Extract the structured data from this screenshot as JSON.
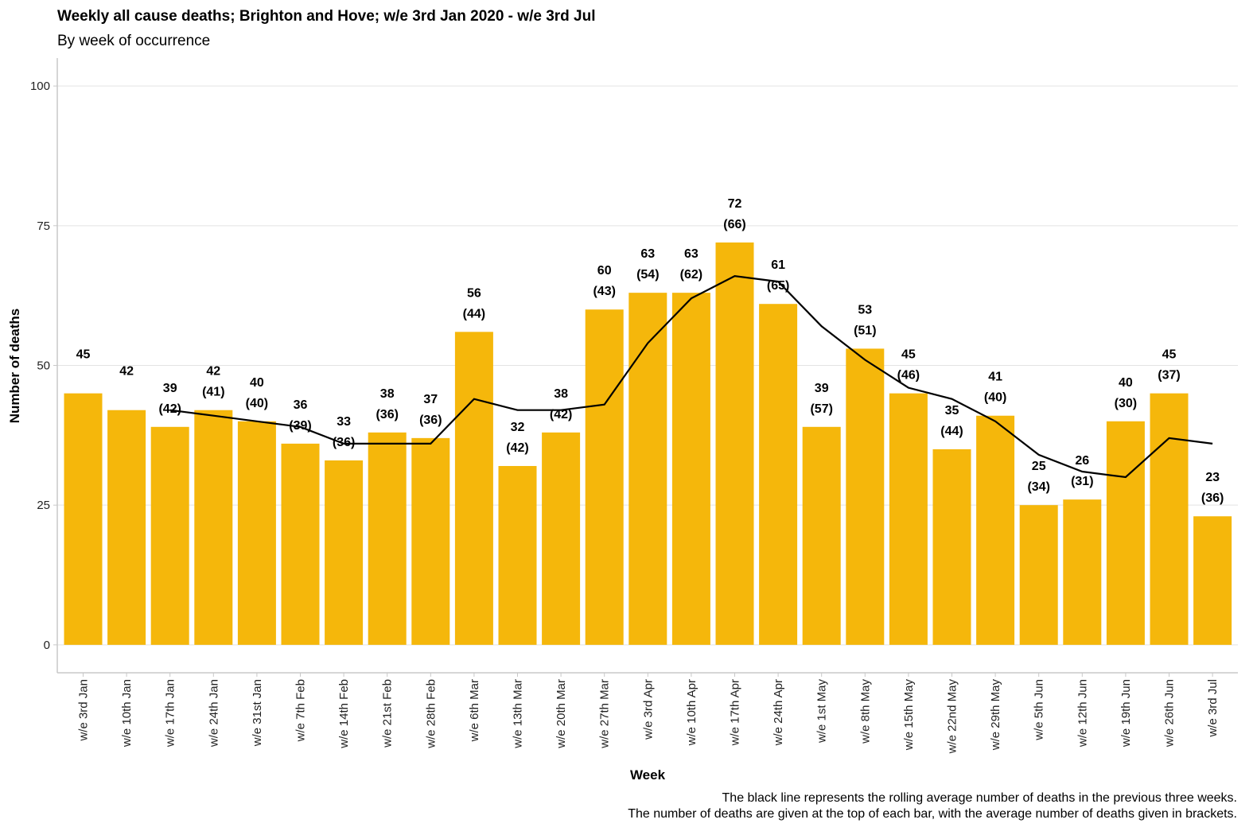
{
  "chart_data": {
    "type": "bar",
    "title": "Weekly all cause deaths; Brighton and Hove; w/e 3rd Jan 2020 - w/e 3rd Jul",
    "subtitle": "By week of occurrence",
    "xlabel": "Week",
    "ylabel": "Number of deaths",
    "ylim": [
      -5,
      105
    ],
    "yticks": [
      0,
      25,
      50,
      75,
      100
    ],
    "grid": "horizontal",
    "bar_color": "#F5B70B",
    "line_color": "#000000",
    "categories": [
      "w/e 3rd Jan",
      "w/e 10th Jan",
      "w/e 17th Jan",
      "w/e 24th Jan",
      "w/e 31st Jan",
      "w/e 7th Feb",
      "w/e 14th Feb",
      "w/e 21st Feb",
      "w/e 28th Feb",
      "w/e 6th Mar",
      "w/e 13th Mar",
      "w/e 20th Mar",
      "w/e 27th Mar",
      "w/e 3rd Apr",
      "w/e 10th Apr",
      "w/e 17th Apr",
      "w/e 24th Apr",
      "w/e 1st May",
      "w/e 8th May",
      "w/e 15th May",
      "w/e 22nd May",
      "w/e 29th May",
      "w/e 5th Jun",
      "w/e 12th Jun",
      "w/e 19th Jun",
      "w/e 26th Jun",
      "w/e 3rd Jul"
    ],
    "values": [
      45,
      42,
      39,
      42,
      40,
      36,
      33,
      38,
      37,
      56,
      32,
      38,
      60,
      63,
      63,
      72,
      61,
      39,
      53,
      45,
      35,
      41,
      25,
      26,
      40,
      45,
      23
    ],
    "rolling_average": [
      null,
      null,
      42,
      41,
      40,
      39,
      36,
      36,
      36,
      44,
      42,
      42,
      43,
      54,
      62,
      66,
      65,
      57,
      51,
      46,
      44,
      40,
      34,
      31,
      30,
      37,
      36
    ],
    "caption_lines": [
      "The black line represents the rolling average number of deaths in the previous three weeks.",
      "The number of deaths are given at the top of each bar, with the average number of deaths given in brackets."
    ]
  }
}
